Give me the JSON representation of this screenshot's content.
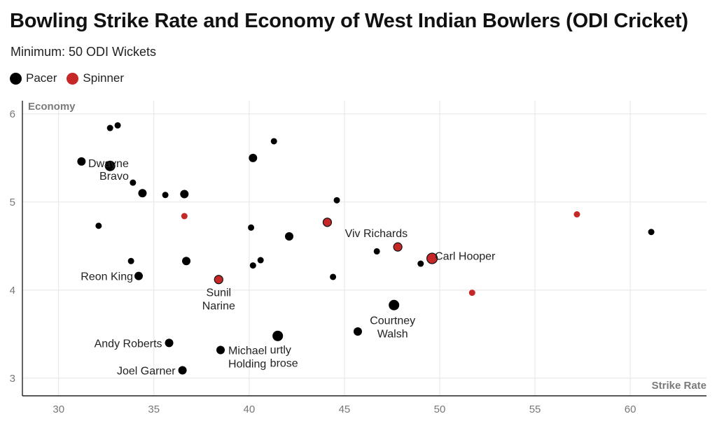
{
  "title": "Bowling Strike Rate and Economy of West Indian Bowlers (ODI Cricket)",
  "subtitle": "Minimum: 50 ODI Wickets",
  "legend": [
    {
      "label": "Pacer",
      "color": "#000000"
    },
    {
      "label": "Spinner",
      "color": "#c62828"
    }
  ],
  "chart_data": {
    "type": "scatter",
    "xlabel": "Strike Rate",
    "ylabel": "Economy",
    "xlim": [
      28.1,
      64
    ],
    "ylim": [
      2.8,
      6.15
    ],
    "xticks": [
      "30",
      "35",
      "40",
      "45",
      "50",
      "55",
      "60"
    ],
    "yticks": [
      "3",
      "4",
      "5",
      "6"
    ],
    "grid": true,
    "legend_position": "top-left",
    "points": [
      {
        "x": 32.7,
        "y": 5.84,
        "type": "Pacer",
        "size": "small"
      },
      {
        "x": 33.1,
        "y": 5.87,
        "type": "Pacer",
        "size": "small"
      },
      {
        "x": 41.3,
        "y": 5.69,
        "type": "Pacer",
        "size": "small"
      },
      {
        "x": 31.2,
        "y": 5.46,
        "type": "Pacer",
        "size": "medium"
      },
      {
        "x": 32.7,
        "y": 5.41,
        "type": "Pacer",
        "size": "large"
      },
      {
        "x": 40.2,
        "y": 5.5,
        "type": "Pacer",
        "size": "medium"
      },
      {
        "x": 33.9,
        "y": 5.22,
        "type": "Pacer",
        "size": "small",
        "label": "Dwayne\nBravo"
      },
      {
        "x": 34.4,
        "y": 5.1,
        "type": "Pacer",
        "size": "medium"
      },
      {
        "x": 35.6,
        "y": 5.08,
        "type": "Pacer",
        "size": "small"
      },
      {
        "x": 36.6,
        "y": 5.09,
        "type": "Pacer",
        "size": "medium"
      },
      {
        "x": 44.6,
        "y": 5.02,
        "type": "Pacer",
        "size": "small"
      },
      {
        "x": 36.6,
        "y": 4.84,
        "type": "Spinner",
        "size": "small"
      },
      {
        "x": 57.2,
        "y": 4.86,
        "type": "Spinner",
        "size": "small"
      },
      {
        "x": 32.1,
        "y": 4.73,
        "type": "Pacer",
        "size": "small"
      },
      {
        "x": 40.1,
        "y": 4.71,
        "type": "Pacer",
        "size": "small"
      },
      {
        "x": 44.1,
        "y": 4.77,
        "type": "Spinner",
        "size": "medium"
      },
      {
        "x": 61.1,
        "y": 4.66,
        "type": "Pacer",
        "size": "small"
      },
      {
        "x": 42.1,
        "y": 4.61,
        "type": "Pacer",
        "size": "medium"
      },
      {
        "x": 46.7,
        "y": 4.44,
        "type": "Pacer",
        "size": "small"
      },
      {
        "x": 47.8,
        "y": 4.49,
        "type": "Spinner",
        "size": "medium",
        "label": "Viv Richards"
      },
      {
        "x": 49.6,
        "y": 4.36,
        "type": "Spinner",
        "size": "large",
        "label": "Carl Hooper"
      },
      {
        "x": 33.8,
        "y": 4.33,
        "type": "Pacer",
        "size": "small"
      },
      {
        "x": 36.7,
        "y": 4.33,
        "type": "Pacer",
        "size": "medium"
      },
      {
        "x": 40.6,
        "y": 4.34,
        "type": "Pacer",
        "size": "small"
      },
      {
        "x": 40.2,
        "y": 4.28,
        "type": "Pacer",
        "size": "small"
      },
      {
        "x": 49.0,
        "y": 4.3,
        "type": "Pacer",
        "size": "small"
      },
      {
        "x": 34.2,
        "y": 4.16,
        "type": "Pacer",
        "size": "medium",
        "label": "Reon King"
      },
      {
        "x": 38.4,
        "y": 4.12,
        "type": "Spinner",
        "size": "medium",
        "label": "Sunil\nNarine"
      },
      {
        "x": 44.4,
        "y": 4.15,
        "type": "Pacer",
        "size": "small"
      },
      {
        "x": 51.7,
        "y": 3.97,
        "type": "Spinner",
        "size": "small"
      },
      {
        "x": 47.6,
        "y": 3.83,
        "type": "Pacer",
        "size": "large",
        "label": "Courtney\nWalsh"
      },
      {
        "x": 45.7,
        "y": 3.53,
        "type": "Pacer",
        "size": "medium"
      },
      {
        "x": 41.5,
        "y": 3.48,
        "type": "Pacer",
        "size": "large",
        "label": "urtly\nbrose"
      },
      {
        "x": 35.8,
        "y": 3.4,
        "type": "Pacer",
        "size": "medium",
        "label": "Andy Roberts"
      },
      {
        "x": 38.5,
        "y": 3.32,
        "type": "Pacer",
        "size": "medium",
        "label": "Michael\nHolding"
      },
      {
        "x": 36.5,
        "y": 3.09,
        "type": "Pacer",
        "size": "medium",
        "label": "Joel Garner"
      }
    ]
  }
}
